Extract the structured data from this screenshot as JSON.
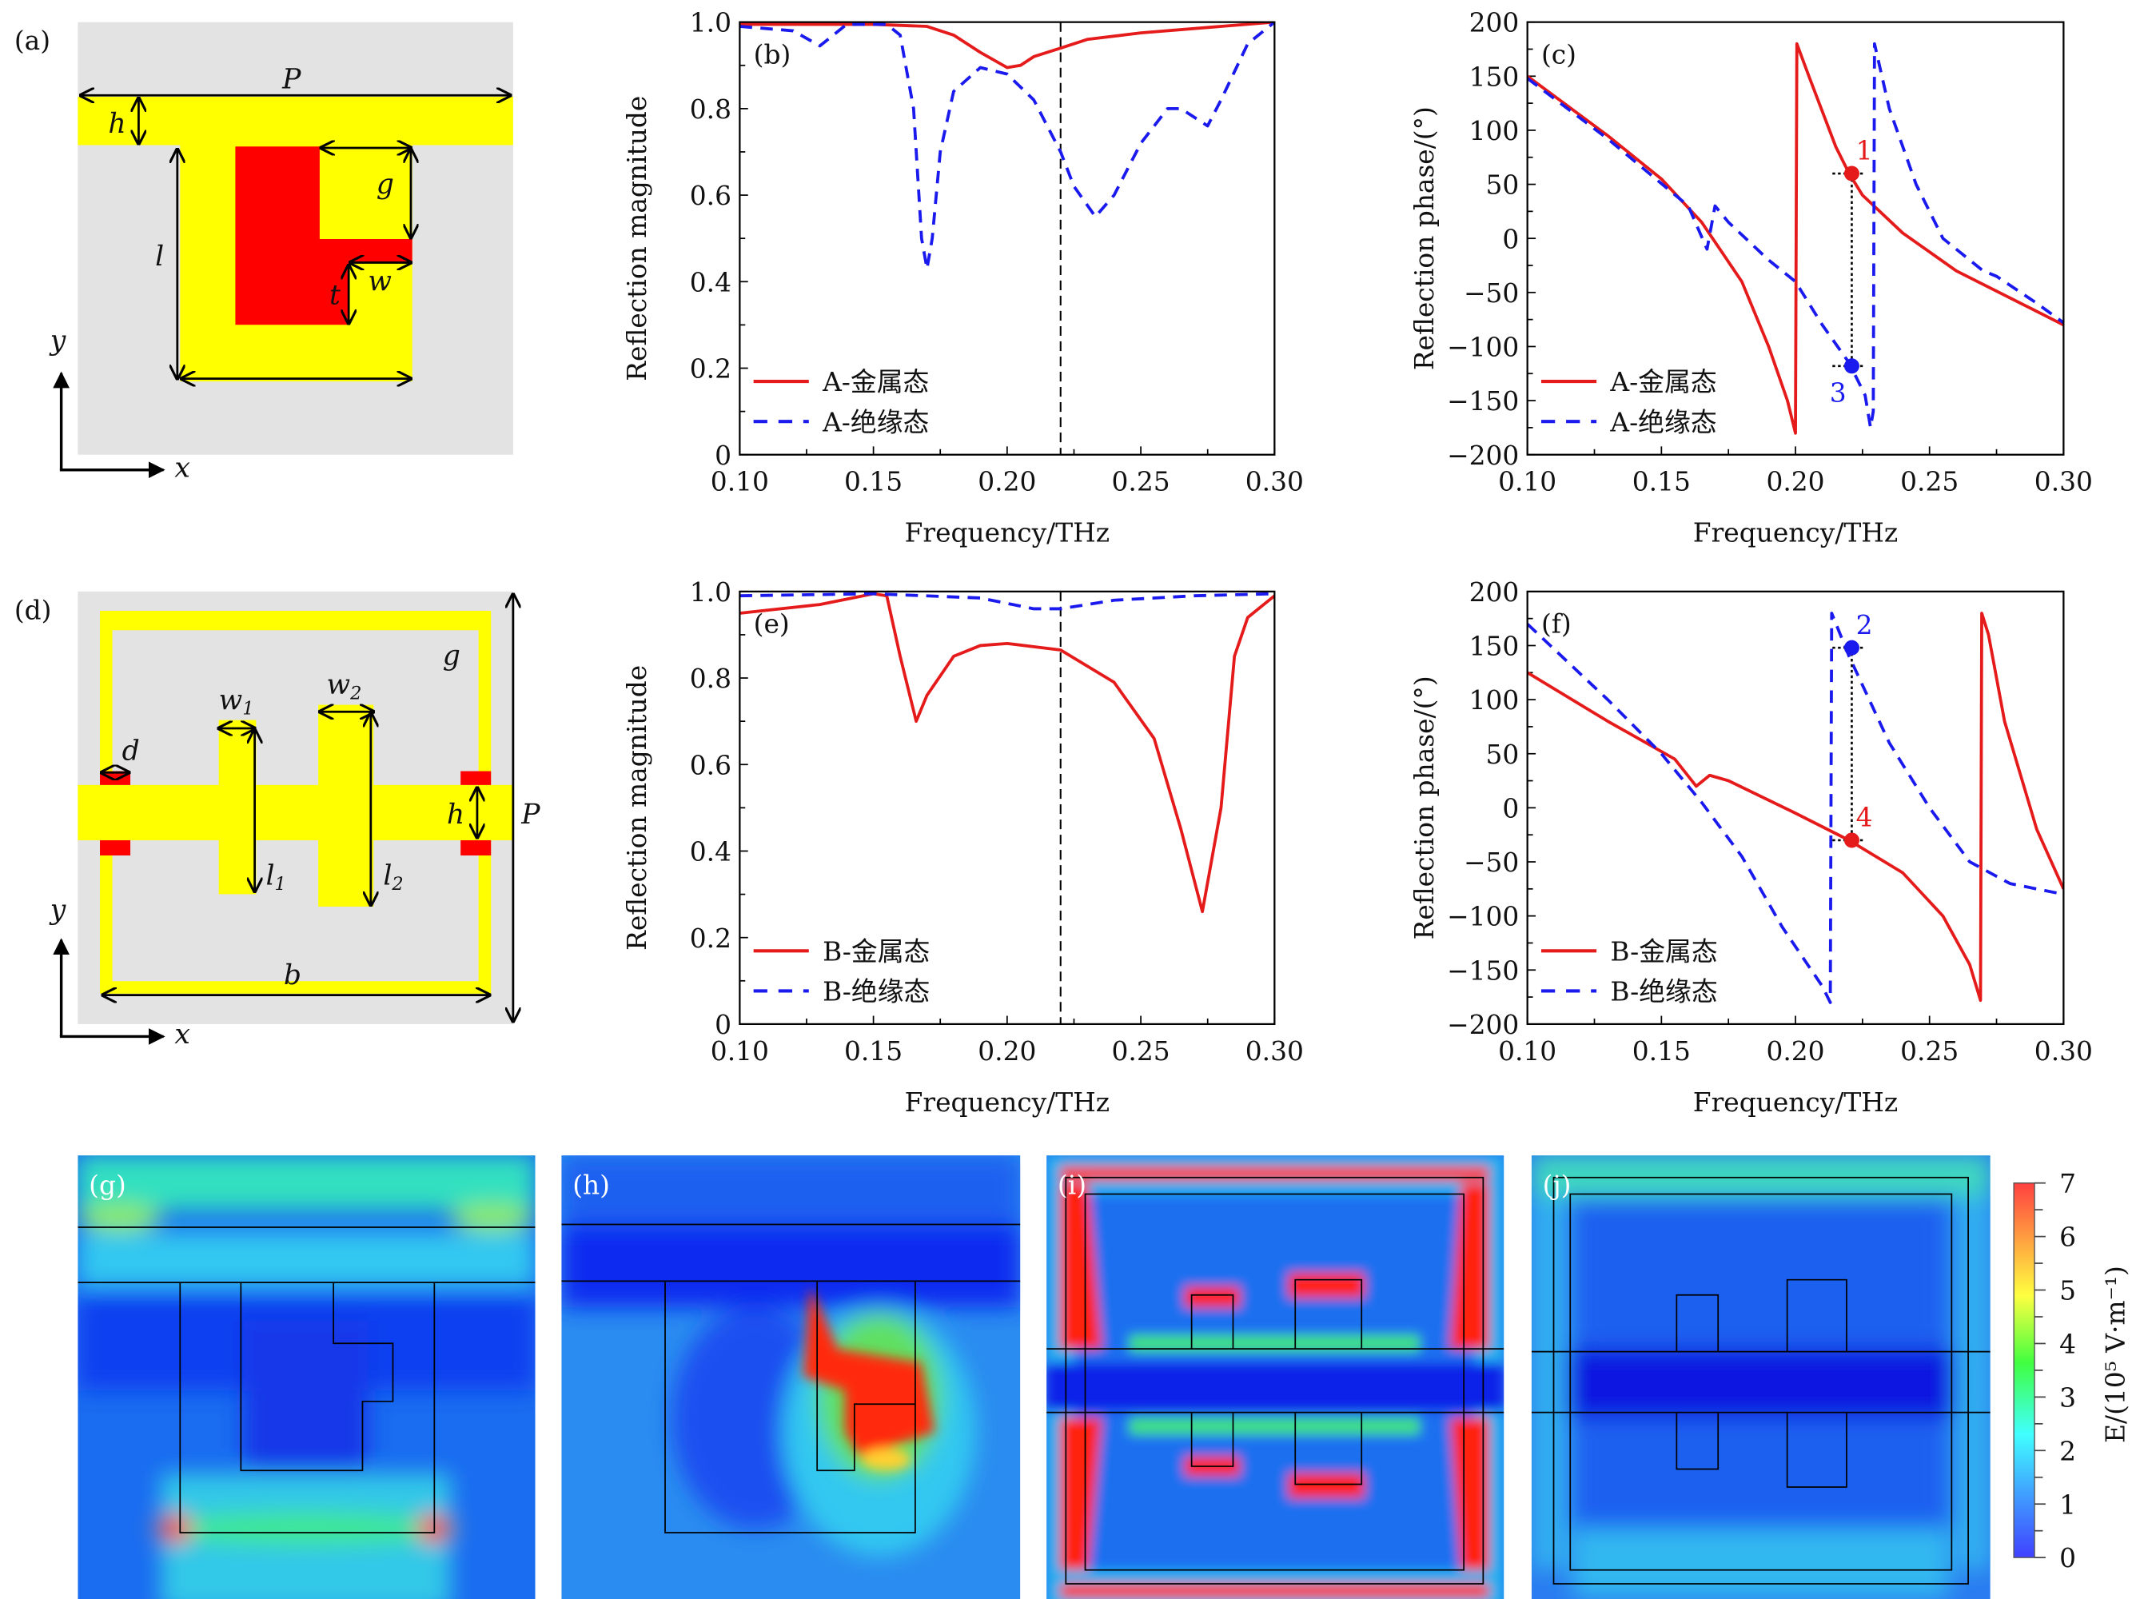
{
  "panels": {
    "a": {
      "label": "(a)",
      "dims": {
        "P": "P",
        "h": "h",
        "g": "g",
        "l": "l",
        "t": "t",
        "w": "w"
      },
      "axes": {
        "x": "x",
        "y": "y"
      }
    },
    "d": {
      "label": "(d)",
      "dims": {
        "g": "g",
        "w1": "w",
        "w1sub": "1",
        "w2": "w",
        "w2sub": "2",
        "d": "d",
        "h": "h",
        "P": "P",
        "l1": "l",
        "l1sub": "1",
        "l2": "l",
        "l2sub": "2",
        "b": "b"
      },
      "axes": {
        "x": "x",
        "y": "y"
      }
    },
    "g": {
      "label": "(g)"
    },
    "h": {
      "label": "(h)"
    },
    "i": {
      "label": "(i)"
    },
    "j": {
      "label": "(j)"
    }
  },
  "colorbar": {
    "ticks": [
      "0",
      "1",
      "2",
      "3",
      "4",
      "5",
      "6",
      "7"
    ],
    "label": "E/(10⁵ V·m⁻¹)",
    "colors": [
      "#4040ff",
      "#40a0ff",
      "#40ffff",
      "#40ff40",
      "#ffff40",
      "#ffa040",
      "#ff4040"
    ]
  },
  "colors": {
    "metal": "#e51a1a",
    "insulator": "#1a1aee",
    "yellow": "#ffff00",
    "red": "#ff0000",
    "substrate": "#e3e3e3"
  },
  "chart_data": [
    {
      "id": "b",
      "panel_label": "(b)",
      "type": "line",
      "xlabel": "Frequency/THz",
      "ylabel": "Reflection  magnitude",
      "xlim": [
        0.1,
        0.3
      ],
      "ylim": [
        0,
        1.0
      ],
      "xticks": [
        "0.10",
        "0.15",
        "0.20",
        "0.25",
        "0.30"
      ],
      "xtick_values": [
        0.1,
        0.15,
        0.2,
        0.25,
        0.3
      ],
      "yticks": [
        "0",
        "0.2",
        "0.4",
        "0.6",
        "0.8",
        "1.0"
      ],
      "ytick_values": [
        0,
        0.2,
        0.4,
        0.6,
        0.8,
        1.0
      ],
      "vline": 0.22,
      "legend_position": "bottom-left",
      "series": [
        {
          "name": "A-金属态",
          "style": "solid",
          "color": "#e51a1a",
          "points": [
            [
              0.1,
              0.995
            ],
            [
              0.15,
              0.995
            ],
            [
              0.17,
              0.99
            ],
            [
              0.18,
              0.97
            ],
            [
              0.19,
              0.93
            ],
            [
              0.2,
              0.895
            ],
            [
              0.205,
              0.9
            ],
            [
              0.21,
              0.92
            ],
            [
              0.22,
              0.94
            ],
            [
              0.23,
              0.96
            ],
            [
              0.25,
              0.975
            ],
            [
              0.28,
              0.99
            ],
            [
              0.3,
              1.0
            ]
          ]
        },
        {
          "name": "A-绝缘态",
          "style": "dashed",
          "color": "#1a1aee",
          "points": [
            [
              0.1,
              0.99
            ],
            [
              0.12,
              0.98
            ],
            [
              0.13,
              0.945
            ],
            [
              0.135,
              0.97
            ],
            [
              0.14,
              0.995
            ],
            [
              0.155,
              0.995
            ],
            [
              0.16,
              0.97
            ],
            [
              0.165,
              0.8
            ],
            [
              0.168,
              0.5
            ],
            [
              0.17,
              0.43
            ],
            [
              0.172,
              0.5
            ],
            [
              0.175,
              0.7
            ],
            [
              0.18,
              0.84
            ],
            [
              0.19,
              0.895
            ],
            [
              0.2,
              0.88
            ],
            [
              0.21,
              0.82
            ],
            [
              0.22,
              0.7
            ],
            [
              0.225,
              0.62
            ],
            [
              0.233,
              0.55
            ],
            [
              0.24,
              0.6
            ],
            [
              0.25,
              0.72
            ],
            [
              0.26,
              0.8
            ],
            [
              0.265,
              0.8
            ],
            [
              0.275,
              0.76
            ],
            [
              0.28,
              0.82
            ],
            [
              0.29,
              0.95
            ],
            [
              0.3,
              1.0
            ]
          ]
        }
      ],
      "markers": []
    },
    {
      "id": "c",
      "panel_label": "(c)",
      "type": "line",
      "xlabel": "Frequency/THz",
      "ylabel": "Reflection  phase/(°)",
      "xlim": [
        0.1,
        0.3
      ],
      "ylim": [
        -200,
        200
      ],
      "xticks": [
        "0.10",
        "0.15",
        "0.20",
        "0.25",
        "0.30"
      ],
      "xtick_values": [
        0.1,
        0.15,
        0.2,
        0.25,
        0.3
      ],
      "yticks": [
        "−200",
        "−150",
        "−100",
        "−50",
        "0",
        "50",
        "100",
        "150",
        "200"
      ],
      "ytick_values": [
        -200,
        -150,
        -100,
        -50,
        0,
        50,
        100,
        150,
        200
      ],
      "vline": null,
      "legend_position": "bottom-left",
      "series": [
        {
          "name": "A-金属态",
          "style": "solid",
          "color": "#e51a1a",
          "points": [
            [
              0.1,
              150
            ],
            [
              0.13,
              95
            ],
            [
              0.15,
              55
            ],
            [
              0.165,
              15
            ],
            [
              0.18,
              -40
            ],
            [
              0.19,
              -100
            ],
            [
              0.197,
              -150
            ],
            [
              0.2,
              -180
            ],
            [
              0.2005,
              180
            ],
            [
              0.205,
              150
            ],
            [
              0.215,
              85
            ],
            [
              0.22,
              60
            ],
            [
              0.225,
              40
            ],
            [
              0.24,
              5
            ],
            [
              0.26,
              -30
            ],
            [
              0.3,
              -80
            ]
          ]
        },
        {
          "name": "A-绝缘态",
          "style": "dashed",
          "color": "#1a1aee",
          "points": [
            [
              0.1,
              148
            ],
            [
              0.13,
              92
            ],
            [
              0.16,
              30
            ],
            [
              0.167,
              -10
            ],
            [
              0.17,
              30
            ],
            [
              0.175,
              15
            ],
            [
              0.19,
              -20
            ],
            [
              0.2,
              -40
            ],
            [
              0.21,
              -80
            ],
            [
              0.22,
              -115
            ],
            [
              0.226,
              -145
            ],
            [
              0.228,
              -175
            ],
            [
              0.229,
              -160
            ],
            [
              0.2295,
              180
            ],
            [
              0.235,
              120
            ],
            [
              0.245,
              50
            ],
            [
              0.255,
              0
            ],
            [
              0.27,
              -30
            ],
            [
              0.275,
              -35
            ],
            [
              0.29,
              -60
            ],
            [
              0.3,
              -78
            ]
          ]
        }
      ],
      "markers": [
        {
          "label": "1",
          "x": 0.221,
          "y": 60,
          "color": "#e51a1a",
          "label_side": "above"
        },
        {
          "label": "3",
          "x": 0.221,
          "y": -118,
          "color": "#1a1aee",
          "label_side": "below"
        }
      ]
    },
    {
      "id": "e",
      "panel_label": "(e)",
      "type": "line",
      "xlabel": "Frequency/THz",
      "ylabel": "Reflection  magnitude",
      "xlim": [
        0.1,
        0.3
      ],
      "ylim": [
        0,
        1.0
      ],
      "xticks": [
        "0.10",
        "0.15",
        "0.20",
        "0.25",
        "0.30"
      ],
      "xtick_values": [
        0.1,
        0.15,
        0.2,
        0.25,
        0.3
      ],
      "yticks": [
        "0",
        "0.2",
        "0.4",
        "0.6",
        "0.8",
        "1.0"
      ],
      "ytick_values": [
        0,
        0.2,
        0.4,
        0.6,
        0.8,
        1.0
      ],
      "vline": 0.22,
      "legend_position": "bottom-left",
      "series": [
        {
          "name": "B-金属态",
          "style": "solid",
          "color": "#e51a1a",
          "points": [
            [
              0.1,
              0.95
            ],
            [
              0.13,
              0.97
            ],
            [
              0.15,
              0.995
            ],
            [
              0.155,
              0.99
            ],
            [
              0.16,
              0.85
            ],
            [
              0.166,
              0.7
            ],
            [
              0.17,
              0.76
            ],
            [
              0.18,
              0.85
            ],
            [
              0.19,
              0.875
            ],
            [
              0.2,
              0.88
            ],
            [
              0.22,
              0.865
            ],
            [
              0.24,
              0.79
            ],
            [
              0.255,
              0.66
            ],
            [
              0.265,
              0.45
            ],
            [
              0.273,
              0.26
            ],
            [
              0.28,
              0.5
            ],
            [
              0.285,
              0.85
            ],
            [
              0.29,
              0.94
            ],
            [
              0.3,
              0.99
            ]
          ]
        },
        {
          "name": "B-绝缘态",
          "style": "dashed",
          "color": "#1a1aee",
          "points": [
            [
              0.1,
              0.99
            ],
            [
              0.15,
              0.995
            ],
            [
              0.19,
              0.985
            ],
            [
              0.21,
              0.96
            ],
            [
              0.22,
              0.96
            ],
            [
              0.24,
              0.98
            ],
            [
              0.27,
              0.99
            ],
            [
              0.3,
              0.995
            ]
          ]
        }
      ],
      "markers": []
    },
    {
      "id": "f",
      "panel_label": "(f)",
      "type": "line",
      "xlabel": "Frequency/THz",
      "ylabel": "Reflection  phase/(°)",
      "xlim": [
        0.1,
        0.3
      ],
      "ylim": [
        -200,
        200
      ],
      "xticks": [
        "0.10",
        "0.15",
        "0.20",
        "0.25",
        "0.30"
      ],
      "xtick_values": [
        0.1,
        0.15,
        0.2,
        0.25,
        0.3
      ],
      "yticks": [
        "−200",
        "−150",
        "−100",
        "−50",
        "0",
        "50",
        "100",
        "150",
        "200"
      ],
      "ytick_values": [
        -200,
        -150,
        -100,
        -50,
        0,
        50,
        100,
        150,
        200
      ],
      "vline": null,
      "legend_position": "bottom-left",
      "series": [
        {
          "name": "B-金属态",
          "style": "solid",
          "color": "#e51a1a",
          "points": [
            [
              0.1,
              125
            ],
            [
              0.13,
              80
            ],
            [
              0.155,
              45
            ],
            [
              0.163,
              20
            ],
            [
              0.168,
              30
            ],
            [
              0.175,
              25
            ],
            [
              0.2,
              -5
            ],
            [
              0.22,
              -30
            ],
            [
              0.24,
              -60
            ],
            [
              0.255,
              -100
            ],
            [
              0.265,
              -145
            ],
            [
              0.269,
              -178
            ],
            [
              0.2695,
              180
            ],
            [
              0.272,
              160
            ],
            [
              0.278,
              80
            ],
            [
              0.29,
              -20
            ],
            [
              0.3,
              -75
            ]
          ]
        },
        {
          "name": "B-绝缘态",
          "style": "dashed",
          "color": "#1a1aee",
          "points": [
            [
              0.1,
              170
            ],
            [
              0.13,
              100
            ],
            [
              0.15,
              50
            ],
            [
              0.165,
              5
            ],
            [
              0.18,
              -45
            ],
            [
              0.195,
              -110
            ],
            [
              0.21,
              -165
            ],
            [
              0.213,
              -180
            ],
            [
              0.2135,
              180
            ],
            [
              0.22,
              140
            ],
            [
              0.235,
              60
            ],
            [
              0.25,
              0
            ],
            [
              0.265,
              -50
            ],
            [
              0.28,
              -70
            ],
            [
              0.3,
              -80
            ]
          ]
        }
      ],
      "markers": [
        {
          "label": "2",
          "x": 0.221,
          "y": 148,
          "color": "#1a1aee",
          "label_side": "above"
        },
        {
          "label": "4",
          "x": 0.221,
          "y": -30,
          "color": "#e51a1a",
          "label_side": "above"
        }
      ]
    }
  ]
}
